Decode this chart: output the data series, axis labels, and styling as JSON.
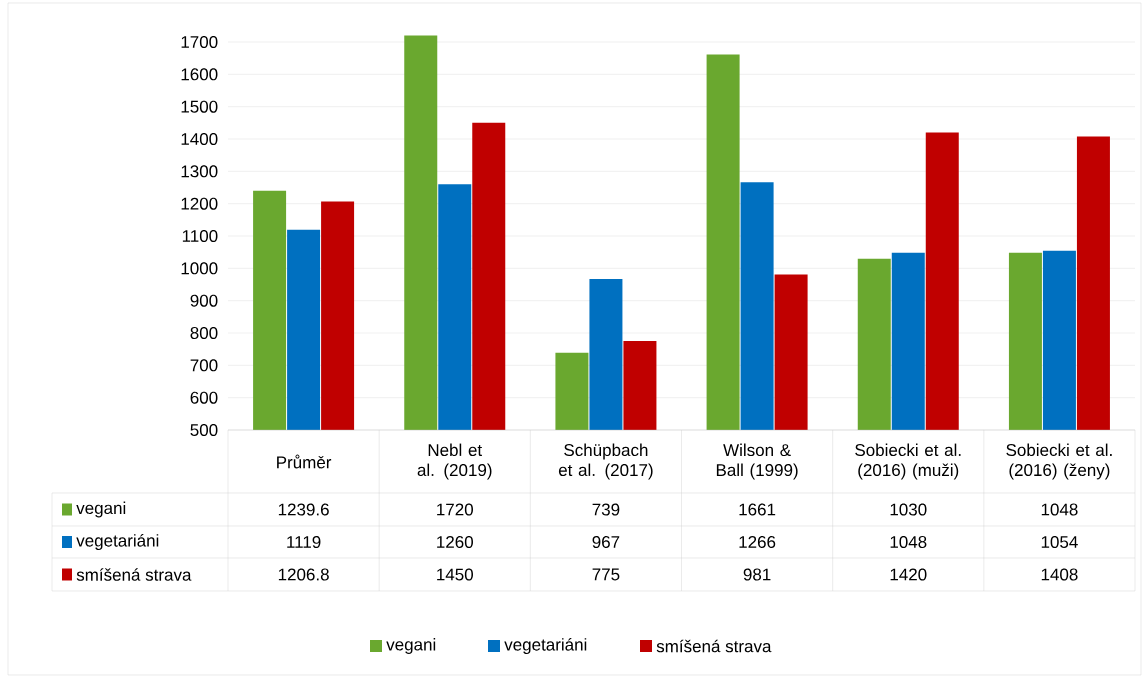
{
  "chart_data": {
    "type": "bar",
    "categories": [
      "Průměr",
      "Nebl et al. (2019)",
      "Schüpbach et al. (2017)",
      "Wilson & Ball (1999)",
      "Sobiecki et al. (2016) (muži)",
      "Sobiecki et al. (2016) (ženy)"
    ],
    "series": [
      {
        "name": "vegani",
        "color": "#6aa82f",
        "values": [
          1239.6,
          1720,
          739,
          1661,
          1030,
          1048
        ]
      },
      {
        "name": "vegetariáni",
        "color": "#0070c0",
        "values": [
          1119,
          1260,
          967,
          1266,
          1048,
          1054
        ]
      },
      {
        "name": "smíšená strava",
        "color": "#c00000",
        "values": [
          1206.8,
          1450,
          775,
          981,
          1420,
          1408
        ]
      }
    ],
    "ylim": [
      500,
      1720
    ],
    "yticks": [
      500,
      600,
      700,
      800,
      900,
      1000,
      1100,
      1200,
      1300,
      1400,
      1500,
      1600,
      1700
    ],
    "grid": "y",
    "legend": "bottom",
    "data_labels": true
  }
}
